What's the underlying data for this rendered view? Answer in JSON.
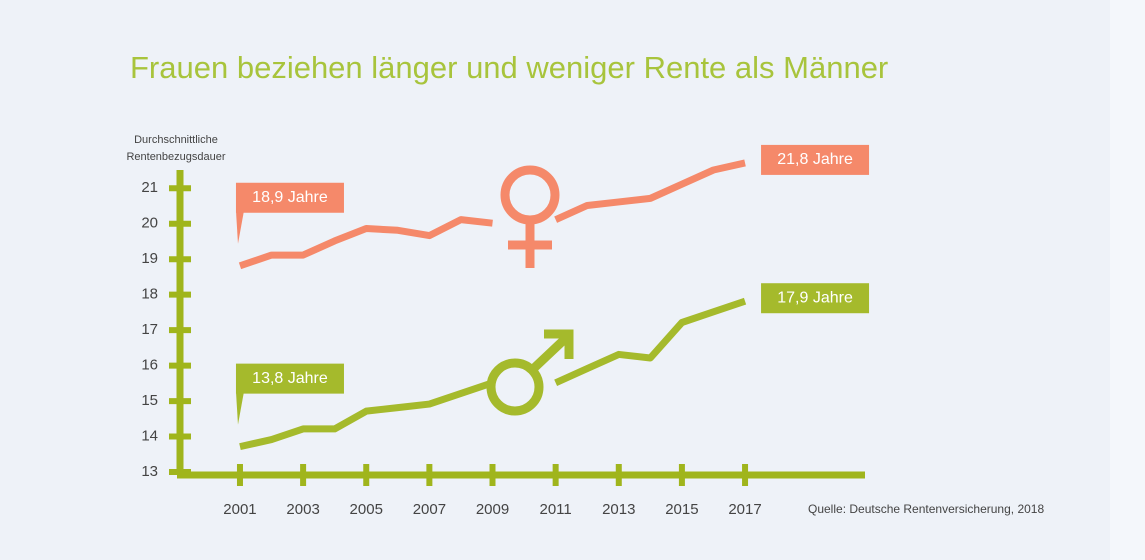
{
  "chart_data": {
    "type": "line",
    "title": "Frauen beziehen länger und weniger Rente als Männer",
    "y_label_lines": [
      "Durchschnittliche",
      "Rentenbezugsdauer"
    ],
    "source": "Quelle: Deutsche Rentenversicherung, 2018",
    "x": [
      2001,
      2002,
      2003,
      2004,
      2005,
      2006,
      2007,
      2008,
      2009,
      2010,
      2011,
      2012,
      2013,
      2014,
      2015,
      2016,
      2017
    ],
    "xlim": [
      1999.1,
      2020.8
    ],
    "xticks": [
      2001,
      2003,
      2005,
      2007,
      2009,
      2011,
      2013,
      2015,
      2017
    ],
    "ylim": [
      13,
      21.6
    ],
    "yticks": [
      13,
      14,
      15,
      16,
      17,
      18,
      19,
      20,
      21
    ],
    "grid": false,
    "axis_color": "#a0b51c",
    "series": [
      {
        "color": "#f5896a",
        "values": [
          18.9,
          19.2,
          19.2,
          19.6,
          19.95,
          19.9,
          19.75,
          20.2,
          20.1,
          null,
          20.2,
          20.6,
          20.7,
          20.8,
          21.2,
          21.6,
          21.8
        ],
        "value_labels": [
          "18,9 Jahre",
          null,
          null,
          null,
          null,
          null,
          null,
          null,
          null,
          null,
          null,
          null,
          null,
          null,
          null,
          null,
          "21,8 Jahre"
        ]
      },
      {
        "color": "#a5ba2c",
        "values": [
          13.8,
          14.0,
          14.3,
          14.3,
          14.8,
          14.9,
          15.0,
          15.3,
          15.6,
          null,
          15.6,
          16.0,
          16.4,
          16.3,
          17.3,
          17.6,
          17.9
        ],
        "value_labels": [
          "13,8 Jahre",
          null,
          null,
          null,
          null,
          null,
          null,
          null,
          null,
          null,
          null,
          null,
          null,
          null,
          null,
          null,
          "17,9 Jahre"
        ]
      }
    ]
  }
}
